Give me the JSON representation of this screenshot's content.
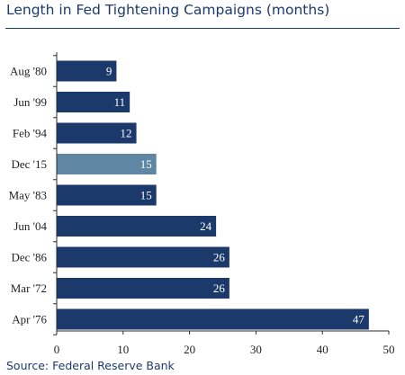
{
  "title": "Length in Fed Tightening Campaigns (months)",
  "source": "Source: Federal Reserve Bank",
  "colors": {
    "bar": "#1b3a6b",
    "highlight": "#5f86a2",
    "text": "#1b3a6b"
  },
  "chart_data": {
    "type": "bar",
    "orientation": "horizontal",
    "categories": [
      "Aug '80",
      "Jun '99",
      "Feb '94",
      "Dec '15",
      "May '83",
      "Jun '04",
      "Dec '86",
      "Mar '72",
      "Apr '76"
    ],
    "values": [
      9,
      11,
      12,
      15,
      15,
      24,
      26,
      26,
      47
    ],
    "data_labels": [
      "9",
      "11",
      "12",
      "15",
      "15",
      "24",
      "26",
      "26",
      "47"
    ],
    "highlight_category": "Dec '15",
    "xlim": [
      0,
      50
    ],
    "xticks": [
      0,
      10,
      20,
      30,
      40,
      50
    ],
    "grid": false,
    "legend": "none"
  }
}
